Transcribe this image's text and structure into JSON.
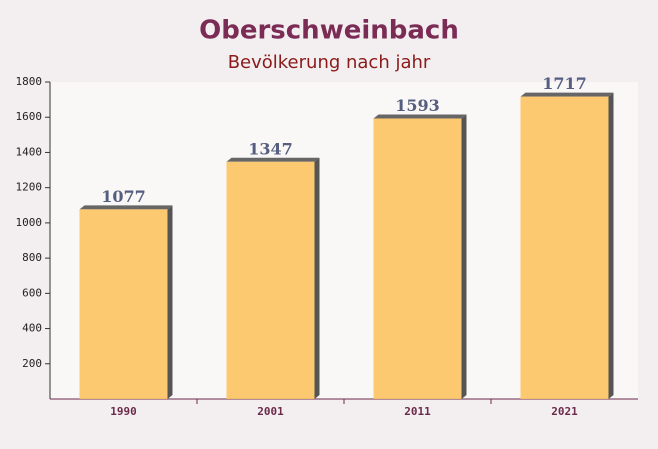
{
  "chart_data": {
    "type": "bar",
    "title": "Oberschweinbach",
    "subtitle": "Bevölkerung nach jahr",
    "categories": [
      "1990",
      "2001",
      "2011",
      "2021"
    ],
    "values": [
      1077,
      1347,
      1593,
      1717
    ],
    "color": "#fcc360",
    "ylim": [
      0,
      1800
    ],
    "yticks": [
      200,
      400,
      600,
      800,
      1000,
      1200,
      1400,
      1600,
      1800
    ]
  }
}
